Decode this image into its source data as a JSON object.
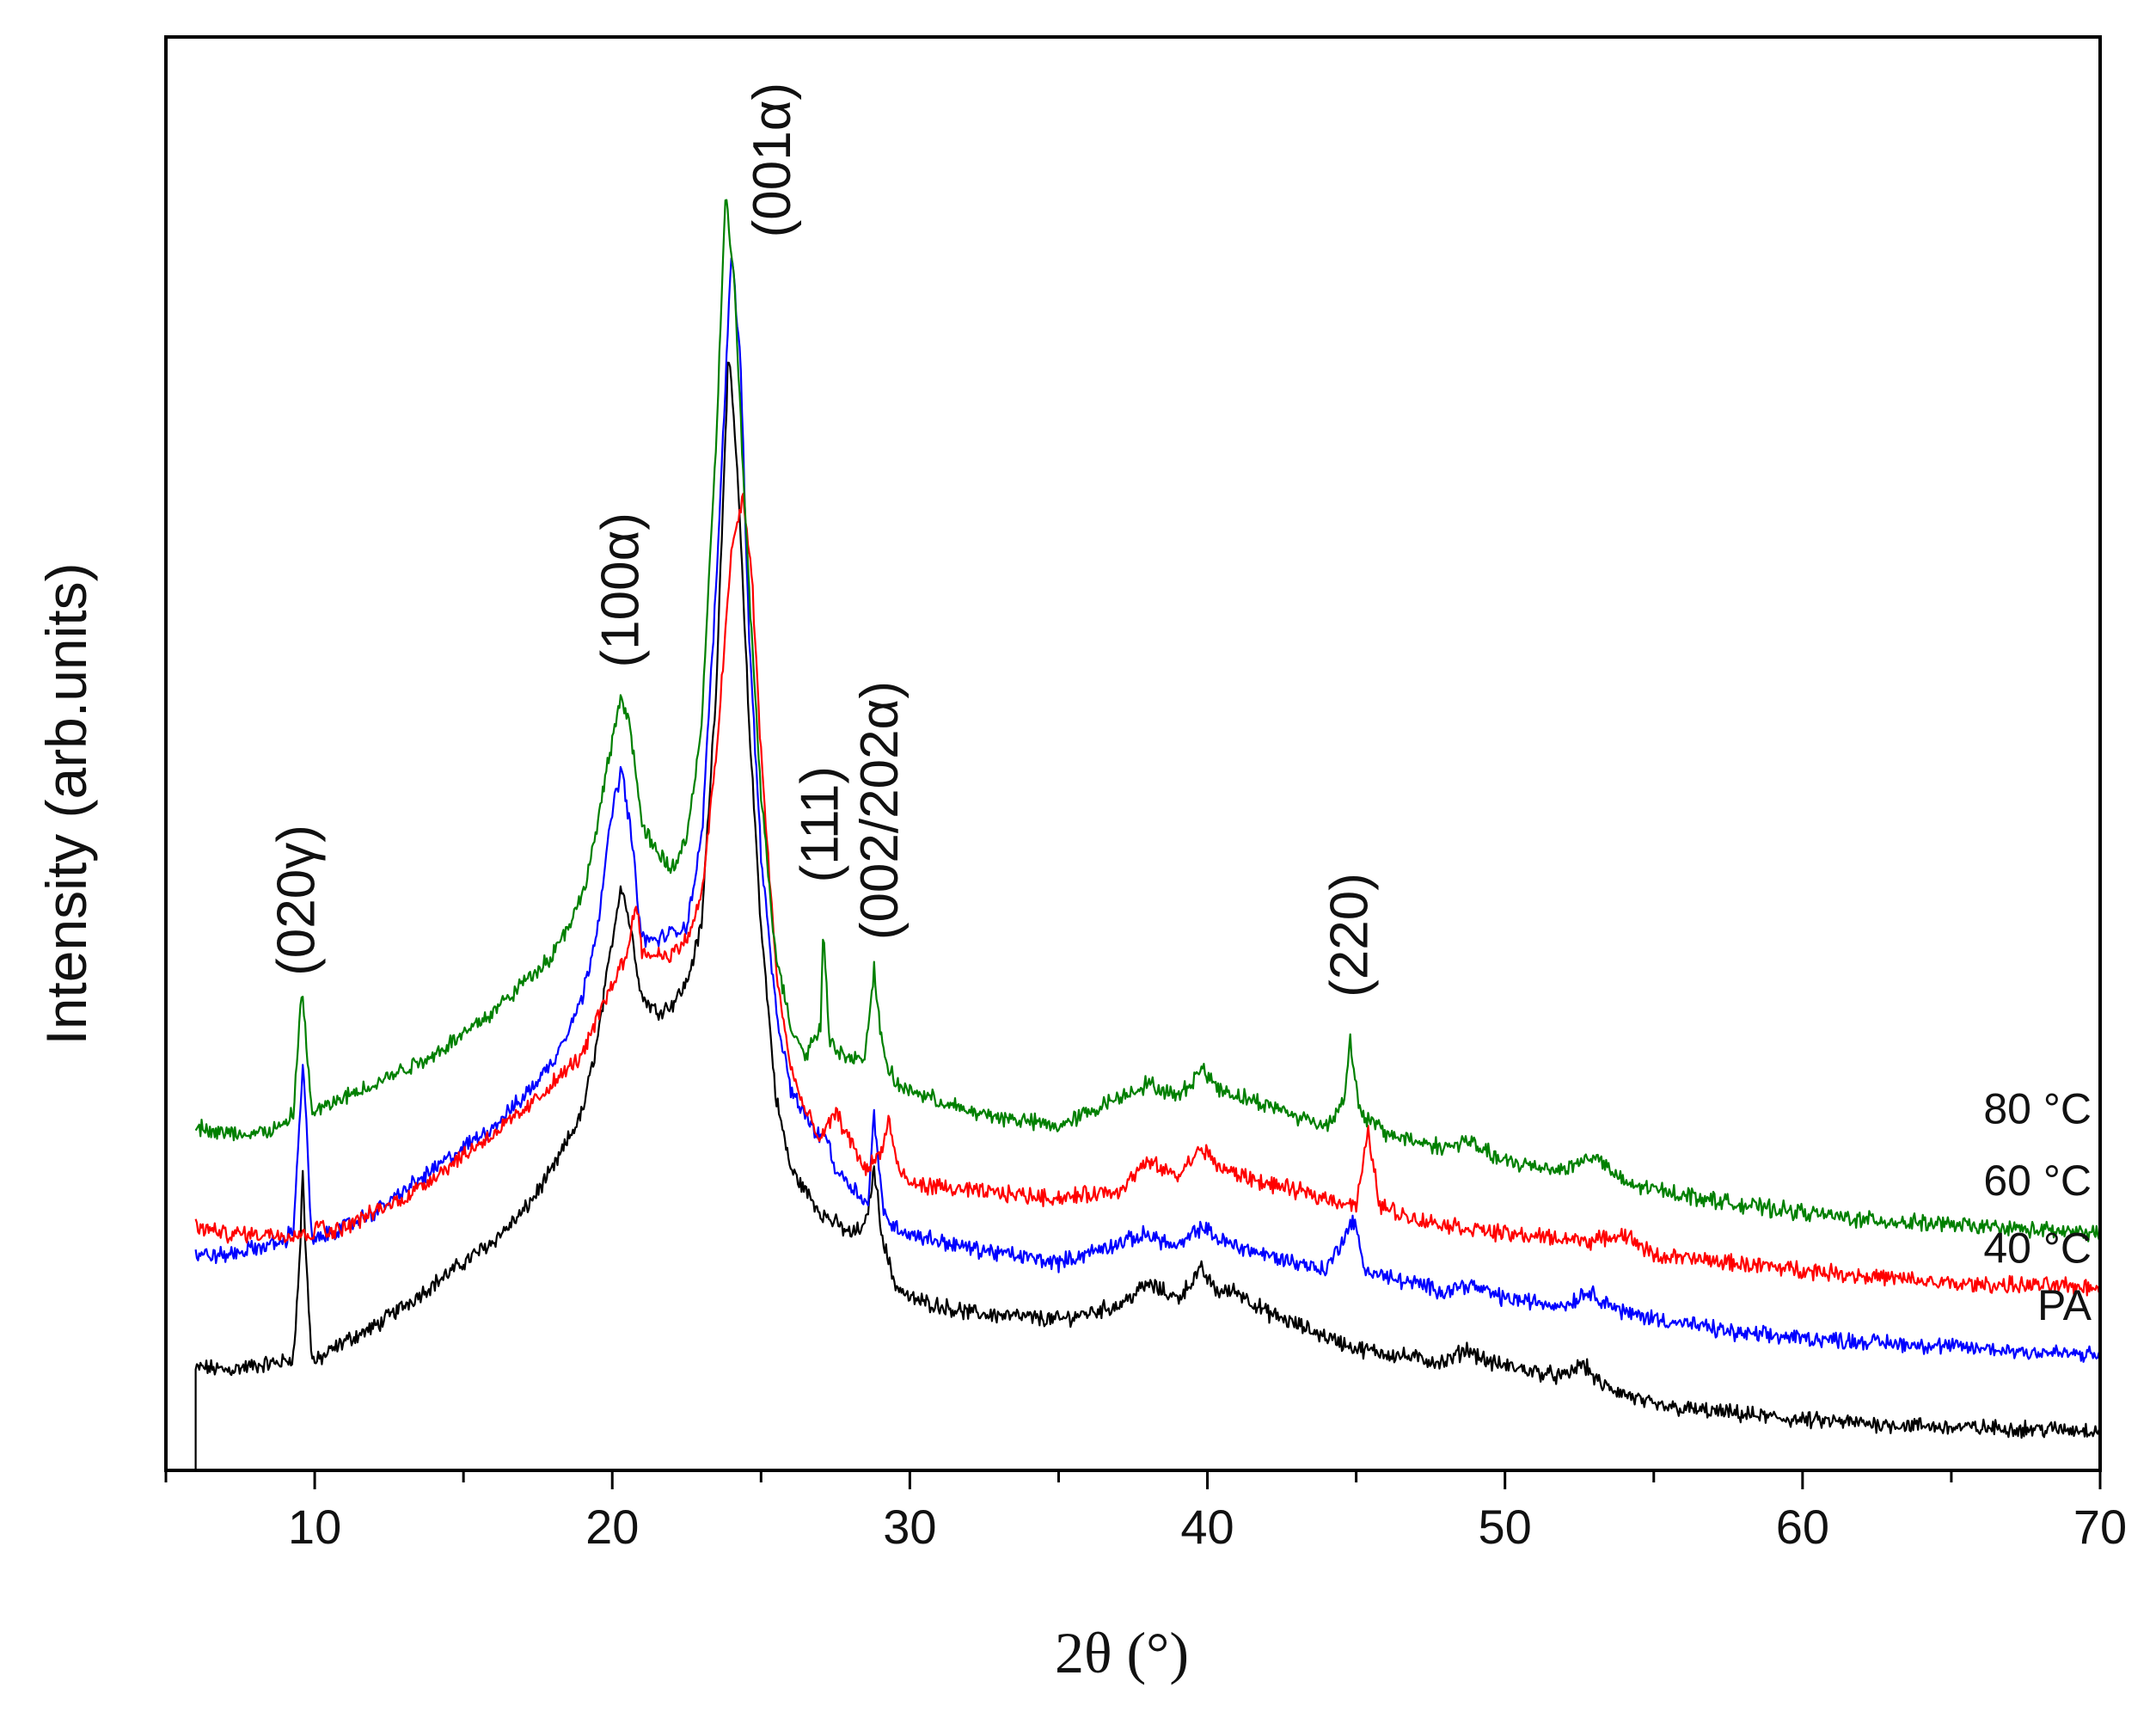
{
  "chart_data": {
    "type": "line",
    "title": "",
    "xlabel": "2θ (°)",
    "ylabel": "Intensity (arb.units)",
    "xlim": [
      5,
      70
    ],
    "ylim": [
      0,
      100
    ],
    "xticks": [
      10,
      20,
      30,
      40,
      50,
      60,
      70
    ],
    "yticks_shown": false,
    "series": [
      {
        "name": "PA",
        "label": "PA",
        "color": "#000000",
        "points": [
          [
            6,
            7
          ],
          [
            6.2,
            7.2
          ],
          [
            7,
            7.0
          ],
          [
            8,
            7.3
          ],
          [
            9,
            7.6
          ],
          [
            9.3,
            8
          ],
          [
            9.5,
            15
          ],
          [
            9.6,
            21
          ],
          [
            9.7,
            15
          ],
          [
            9.9,
            8
          ],
          [
            10,
            7.5
          ],
          [
            11,
            9
          ],
          [
            12,
            10
          ],
          [
            13,
            11.5
          ],
          [
            14,
            13
          ],
          [
            15,
            14.5
          ],
          [
            16,
            16
          ],
          [
            17,
            18
          ],
          [
            18,
            21
          ],
          [
            19,
            25
          ],
          [
            19.5,
            30
          ],
          [
            20,
            37
          ],
          [
            20.3,
            41
          ],
          [
            20.6,
            38
          ],
          [
            21,
            33
          ],
          [
            21.5,
            32
          ],
          [
            22,
            32.5
          ],
          [
            22.5,
            34
          ],
          [
            23,
            38
          ],
          [
            23.5,
            55
          ],
          [
            23.9,
            78
          ],
          [
            24.2,
            70
          ],
          [
            24.6,
            52
          ],
          [
            25,
            38
          ],
          [
            25.5,
            26
          ],
          [
            26,
            21
          ],
          [
            27,
            18
          ],
          [
            28,
            16.5
          ],
          [
            28.5,
            17
          ],
          [
            28.8,
            21
          ],
          [
            29.1,
            16
          ],
          [
            29.5,
            13
          ],
          [
            30,
            12
          ],
          [
            32,
            11
          ],
          [
            35,
            10.5
          ],
          [
            37,
            11.5
          ],
          [
            38,
            13
          ],
          [
            38.5,
            12.5
          ],
          [
            39,
            12
          ],
          [
            39.8,
            14
          ],
          [
            40.3,
            12.5
          ],
          [
            41,
            12.5
          ],
          [
            42,
            11
          ],
          [
            45,
            8.5
          ],
          [
            48,
            7.5
          ],
          [
            48.7,
            8.5
          ],
          [
            49.5,
            7.5
          ],
          [
            52,
            6.5
          ],
          [
            52.6,
            7.5
          ],
          [
            53.2,
            6
          ],
          [
            55,
            4.5
          ],
          [
            60,
            3.5
          ],
          [
            65,
            3
          ],
          [
            70,
            2.8
          ]
        ]
      },
      {
        "name": "40 °C",
        "label": "40 °C",
        "color": "#0000ff",
        "points": [
          [
            6,
            15
          ],
          [
            7,
            15
          ],
          [
            8,
            15.5
          ],
          [
            9,
            16
          ],
          [
            9.3,
            17
          ],
          [
            9.5,
            25
          ],
          [
            9.6,
            28
          ],
          [
            9.7,
            25
          ],
          [
            9.9,
            16
          ],
          [
            10,
            16
          ],
          [
            11,
            17
          ],
          [
            12,
            18
          ],
          [
            13,
            19.5
          ],
          [
            14,
            21
          ],
          [
            15,
            22.5
          ],
          [
            16,
            24
          ],
          [
            17,
            26
          ],
          [
            18,
            28.5
          ],
          [
            19,
            33
          ],
          [
            19.5,
            38
          ],
          [
            20,
            46
          ],
          [
            20.3,
            49
          ],
          [
            20.6,
            45
          ],
          [
            21,
            37
          ],
          [
            21.5,
            37
          ],
          [
            22,
            37.5
          ],
          [
            22.5,
            38
          ],
          [
            23,
            44
          ],
          [
            23.5,
            62
          ],
          [
            24,
            85
          ],
          [
            24.3,
            78
          ],
          [
            24.6,
            58
          ],
          [
            25,
            43
          ],
          [
            25.5,
            32
          ],
          [
            26,
            26.5
          ],
          [
            27,
            23
          ],
          [
            27.1,
            24
          ],
          [
            27.5,
            21
          ],
          [
            28,
            20
          ],
          [
            28.6,
            18.5
          ],
          [
            28.8,
            25
          ],
          [
            29.1,
            18
          ],
          [
            29.5,
            17
          ],
          [
            30,
            16.5
          ],
          [
            32,
            15.5
          ],
          [
            35,
            14.5
          ],
          [
            38,
            16.5
          ],
          [
            39,
            15.5
          ],
          [
            39.8,
            17
          ],
          [
            40.5,
            16
          ],
          [
            42,
            15
          ],
          [
            44,
            14
          ],
          [
            44.9,
            17.5
          ],
          [
            45.3,
            14
          ],
          [
            46,
            13.5
          ],
          [
            48,
            12.5
          ],
          [
            48.7,
            13
          ],
          [
            50,
            12
          ],
          [
            52,
            11.5
          ],
          [
            52.8,
            12.5
          ],
          [
            54,
            11
          ],
          [
            58,
            9.5
          ],
          [
            62,
            9
          ],
          [
            66,
            8.5
          ],
          [
            70,
            8
          ]
        ]
      },
      {
        "name": "60 °C",
        "label": "60 °C",
        "color": "#ff0000",
        "points": [
          [
            6,
            17
          ],
          [
            7,
            16.5
          ],
          [
            8,
            16.5
          ],
          [
            9,
            16.5
          ],
          [
            10,
            16.5
          ],
          [
            10.2,
            17.5
          ],
          [
            10.5,
            16.5
          ],
          [
            11,
            17
          ],
          [
            12,
            18
          ],
          [
            13,
            19
          ],
          [
            14,
            20.5
          ],
          [
            15,
            22
          ],
          [
            16,
            23.5
          ],
          [
            17,
            25
          ],
          [
            18,
            27
          ],
          [
            19,
            29
          ],
          [
            19.5,
            31.5
          ],
          [
            20,
            34
          ],
          [
            20.5,
            36
          ],
          [
            20.8,
            40
          ],
          [
            21,
            36
          ],
          [
            21.5,
            36
          ],
          [
            22,
            36
          ],
          [
            22.5,
            37
          ],
          [
            23,
            40
          ],
          [
            23.5,
            50
          ],
          [
            24,
            64
          ],
          [
            24.4,
            68
          ],
          [
            24.7,
            62
          ],
          [
            25,
            50
          ],
          [
            25.5,
            35
          ],
          [
            26,
            28
          ],
          [
            26.5,
            25
          ],
          [
            27,
            23
          ],
          [
            27.5,
            25
          ],
          [
            28,
            23
          ],
          [
            28.5,
            21
          ],
          [
            29,
            22
          ],
          [
            29.3,
            24.5
          ],
          [
            29.6,
            21
          ],
          [
            30,
            20
          ],
          [
            32,
            19.5
          ],
          [
            35,
            19
          ],
          [
            37,
            19.5
          ],
          [
            38,
            21.5
          ],
          [
            39,
            20.5
          ],
          [
            39.8,
            22.5
          ],
          [
            40.5,
            21
          ],
          [
            42,
            20
          ],
          [
            44,
            19
          ],
          [
            45,
            18.5
          ],
          [
            45.4,
            23.5
          ],
          [
            45.8,
            18.5
          ],
          [
            47,
            17.5
          ],
          [
            50,
            16.5
          ],
          [
            53,
            16
          ],
          [
            54,
            16.5
          ],
          [
            55,
            15
          ],
          [
            60,
            14
          ],
          [
            65,
            13
          ],
          [
            70,
            12.8
          ]
        ]
      },
      {
        "name": "80 °C",
        "label": "80 °C",
        "color": "#008000",
        "points": [
          [
            6,
            24
          ],
          [
            7,
            23.5
          ],
          [
            8,
            23.5
          ],
          [
            9,
            24
          ],
          [
            9.3,
            25
          ],
          [
            9.5,
            32
          ],
          [
            9.6,
            33.5
          ],
          [
            9.7,
            30
          ],
          [
            9.9,
            25
          ],
          [
            10,
            25
          ],
          [
            11,
            26
          ],
          [
            12,
            27
          ],
          [
            13,
            28
          ],
          [
            14,
            29
          ],
          [
            15,
            30.5
          ],
          [
            16,
            32
          ],
          [
            17,
            34
          ],
          [
            18,
            36
          ],
          [
            19,
            40
          ],
          [
            19.5,
            45
          ],
          [
            20,
            51
          ],
          [
            20.3,
            54
          ],
          [
            20.6,
            52
          ],
          [
            21,
            45
          ],
          [
            21.5,
            43
          ],
          [
            22,
            42
          ],
          [
            22.5,
            44
          ],
          [
            23,
            52
          ],
          [
            23.5,
            72
          ],
          [
            23.8,
            89
          ],
          [
            24.1,
            83
          ],
          [
            24.5,
            65
          ],
          [
            25,
            47
          ],
          [
            25.5,
            36
          ],
          [
            26,
            31
          ],
          [
            26.5,
            29
          ],
          [
            27,
            31
          ],
          [
            27.1,
            38
          ],
          [
            27.3,
            30
          ],
          [
            28,
            28.5
          ],
          [
            28.5,
            29
          ],
          [
            28.8,
            35
          ],
          [
            29.1,
            29
          ],
          [
            29.5,
            27
          ],
          [
            30,
            26.5
          ],
          [
            32,
            25
          ],
          [
            35,
            24
          ],
          [
            38,
            27
          ],
          [
            39,
            26
          ],
          [
            39.8,
            28
          ],
          [
            40.5,
            26.5
          ],
          [
            42,
            25.5
          ],
          [
            44,
            24
          ],
          [
            44.6,
            26
          ],
          [
            44.8,
            30
          ],
          [
            45.1,
            25
          ],
          [
            46,
            23.5
          ],
          [
            48,
            22.5
          ],
          [
            48.7,
            23
          ],
          [
            50,
            21.5
          ],
          [
            52,
            21
          ],
          [
            53,
            22
          ],
          [
            54,
            20
          ],
          [
            58,
            18.5
          ],
          [
            62,
            17.5
          ],
          [
            66,
            17
          ],
          [
            70,
            16.5
          ]
        ]
      }
    ],
    "annotations": [
      {
        "text": "(020γ)",
        "x": 9.4,
        "y": 34.5
      },
      {
        "text": "(100α)",
        "x": 20.3,
        "y": 56
      },
      {
        "text": "(001α)",
        "x": 25.4,
        "y": 86
      },
      {
        "text": "(111)",
        "x": 27.0,
        "y": 41
      },
      {
        "text": "(002/202α)",
        "x": 29.0,
        "y": 37
      },
      {
        "text": "(220)",
        "x": 44.8,
        "y": 33
      }
    ]
  }
}
